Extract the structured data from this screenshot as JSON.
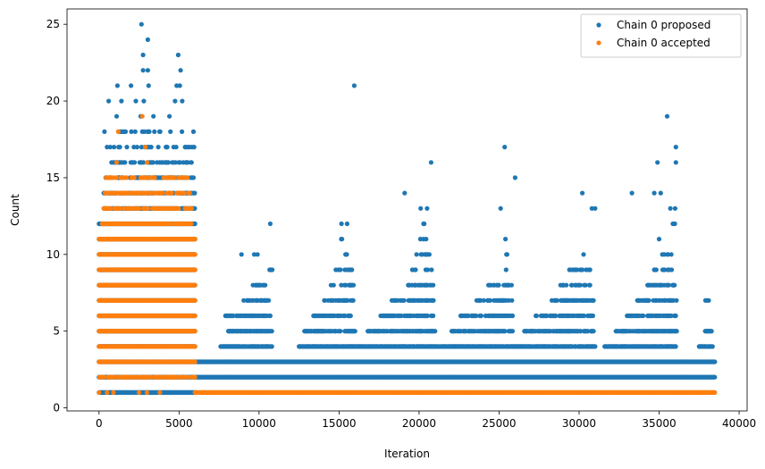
{
  "chart_data": {
    "type": "scatter",
    "title": "",
    "xlabel": "Iteration",
    "ylabel": "Count",
    "xlim": [
      -2000,
      40500
    ],
    "ylim": [
      -0.2,
      26
    ],
    "xticks": [
      0,
      5000,
      10000,
      15000,
      20000,
      25000,
      30000,
      35000,
      40000
    ],
    "xtick_labels": [
      "0",
      "5000",
      "10000",
      "15000",
      "20000",
      "25000",
      "30000",
      "35000",
      "40000"
    ],
    "yticks": [
      0,
      5,
      10,
      15,
      20,
      25
    ],
    "ytick_labels": [
      "0",
      "5",
      "10",
      "15",
      "20",
      "25"
    ],
    "grid": false,
    "legend_position": "top-right",
    "series": [
      {
        "name": "Chain 0 proposed",
        "color": "#1f77b4",
        "bands": [
          {
            "y": 1,
            "x": [
              0,
              6000
            ]
          },
          {
            "y": 2,
            "x": [
              0,
              38500
            ]
          },
          {
            "y": 3,
            "x": [
              0,
              38500
            ]
          },
          {
            "y": 4,
            "x": [
              0,
              6000
            ]
          },
          {
            "y": 5,
            "x": [
              0,
              6000
            ]
          },
          {
            "y": 6,
            "x": [
              0,
              6000
            ]
          },
          {
            "y": 7,
            "x": [
              0,
              6000
            ]
          },
          {
            "y": 8,
            "x": [
              0,
              6000
            ]
          },
          {
            "y": 9,
            "x": [
              0,
              6000
            ]
          },
          {
            "y": 10,
            "x": [
              0,
              6000
            ]
          },
          {
            "y": 11,
            "x": [
              0,
              6000
            ]
          },
          {
            "y": 12,
            "x": [
              0,
              6000
            ]
          }
        ],
        "clusters": [
          {
            "start": 6000,
            "end": 10800,
            "levels": [
              [
                4,
                7600,
                10800
              ],
              [
                5,
                8000,
                10800
              ],
              [
                6,
                7900,
                10700
              ],
              [
                7,
                9000,
                10600
              ],
              [
                8,
                9500,
                10400
              ],
              [
                9,
                10500,
                10900
              ]
            ]
          },
          {
            "start": 10800,
            "end": 16200,
            "levels": [
              [
                4,
                12500,
                16200
              ],
              [
                5,
                12800,
                16000
              ],
              [
                6,
                13400,
                15900
              ],
              [
                7,
                14000,
                15900
              ],
              [
                8,
                14500,
                15900
              ],
              [
                9,
                14800,
                15800
              ],
              [
                10,
                15000,
                15700
              ],
              [
                11,
                15100,
                15700
              ]
            ]
          },
          {
            "start": 16200,
            "end": 21000,
            "levels": [
              [
                4,
                16200,
                21000
              ],
              [
                5,
                16800,
                21000
              ],
              [
                6,
                17600,
                20900
              ],
              [
                7,
                18300,
                20900
              ],
              [
                8,
                19200,
                20900
              ],
              [
                9,
                19500,
                20800
              ],
              [
                10,
                19800,
                20700
              ],
              [
                11,
                20000,
                20600
              ],
              [
                12,
                20000,
                20400
              ]
            ]
          },
          {
            "start": 21000,
            "end": 26000,
            "levels": [
              [
                4,
                21000,
                26000
              ],
              [
                5,
                22000,
                25900
              ],
              [
                6,
                22600,
                25900
              ],
              [
                7,
                23600,
                25800
              ],
              [
                8,
                24300,
                25800
              ],
              [
                9,
                24800,
                25700
              ],
              [
                10,
                25300,
                25600
              ],
              [
                11,
                25400,
                25800
              ]
            ]
          },
          {
            "start": 26000,
            "end": 31000,
            "levels": [
              [
                4,
                26000,
                31000
              ],
              [
                5,
                26500,
                30900
              ],
              [
                6,
                27300,
                30900
              ],
              [
                7,
                28300,
                30900
              ],
              [
                8,
                28800,
                30800
              ],
              [
                9,
                29400,
                30700
              ],
              [
                10,
                30000,
                30600
              ],
              [
                11,
                30300,
                30500
              ]
            ]
          },
          {
            "start": 31000,
            "end": 36200,
            "levels": [
              [
                4,
                31600,
                36100
              ],
              [
                5,
                32300,
                36100
              ],
              [
                6,
                33000,
                36100
              ],
              [
                7,
                33600,
                36100
              ],
              [
                8,
                34200,
                36000
              ],
              [
                9,
                34700,
                36000
              ],
              [
                10,
                35200,
                35900
              ],
              [
                12,
                35700,
                36000
              ]
            ]
          },
          {
            "start": 36200,
            "end": 38500,
            "levels": [
              [
                4,
                37500,
                38400
              ],
              [
                5,
                37800,
                38300
              ],
              [
                7,
                37900,
                38300
              ]
            ]
          }
        ],
        "outliers": [
          [
            2650,
            25
          ],
          [
            3050,
            24
          ],
          [
            4950,
            23
          ],
          [
            2750,
            23
          ],
          [
            5100,
            22
          ],
          [
            2750,
            22
          ],
          [
            3050,
            22
          ],
          [
            1150,
            21
          ],
          [
            2000,
            21
          ],
          [
            3100,
            21
          ],
          [
            4850,
            21
          ],
          [
            5050,
            21
          ],
          [
            15950,
            21
          ],
          [
            600,
            20
          ],
          [
            1400,
            20
          ],
          [
            2300,
            20
          ],
          [
            2800,
            20
          ],
          [
            4750,
            20
          ],
          [
            5200,
            20
          ],
          [
            35500,
            19
          ],
          [
            1100,
            19
          ],
          [
            2600,
            19
          ],
          [
            3400,
            19
          ],
          [
            4400,
            19
          ],
          [
            25350,
            17
          ],
          [
            36050,
            17
          ],
          [
            20750,
            16
          ],
          [
            34900,
            16
          ],
          [
            36050,
            16
          ],
          [
            26000,
            15
          ],
          [
            19100,
            14
          ],
          [
            30200,
            14
          ],
          [
            33300,
            14
          ],
          [
            34700,
            14
          ],
          [
            35100,
            14
          ],
          [
            10700,
            12
          ],
          [
            15150,
            12
          ],
          [
            15500,
            12
          ],
          [
            25100,
            13
          ],
          [
            20100,
            13
          ],
          [
            20500,
            13
          ],
          [
            30800,
            13
          ],
          [
            31000,
            13
          ],
          [
            35700,
            13
          ],
          [
            36000,
            13
          ],
          [
            8900,
            10
          ],
          [
            9700,
            10
          ],
          [
            9900,
            10
          ],
          [
            35000,
            11
          ]
        ]
      },
      {
        "name": "Chain 0 accepted",
        "color": "#ff7f0e",
        "bands": [
          {
            "y": 1,
            "x": [
              6000,
              38500
            ]
          },
          {
            "y": 2,
            "x": [
              0,
              6000
            ]
          },
          {
            "y": 3,
            "x": [
              0,
              6000
            ]
          },
          {
            "y": 4,
            "x": [
              0,
              6000
            ]
          },
          {
            "y": 5,
            "x": [
              0,
              6000
            ]
          },
          {
            "y": 6,
            "x": [
              0,
              6000
            ]
          },
          {
            "y": 7,
            "x": [
              0,
              6000
            ]
          },
          {
            "y": 8,
            "x": [
              0,
              6000
            ]
          },
          {
            "y": 9,
            "x": [
              0,
              6000
            ]
          },
          {
            "y": 10,
            "x": [
              0,
              6000
            ]
          },
          {
            "y": 11,
            "x": [
              0,
              6000
            ]
          },
          {
            "y": 12,
            "x": [
              200,
              5800
            ]
          },
          {
            "y": 13,
            "x": [
              300,
              5800
            ]
          },
          {
            "y": 14,
            "x": [
              300,
              5700
            ]
          },
          {
            "y": 15,
            "x": [
              400,
              5800
            ]
          }
        ],
        "outliers": [
          [
            0,
            1
          ],
          [
            500,
            1
          ],
          [
            900,
            1
          ],
          [
            2500,
            1
          ],
          [
            3000,
            1
          ],
          [
            3800,
            1
          ],
          [
            1200,
            18
          ],
          [
            2700,
            19
          ],
          [
            3000,
            16
          ],
          [
            1100,
            16
          ],
          [
            2900,
            17
          ]
        ]
      }
    ]
  }
}
